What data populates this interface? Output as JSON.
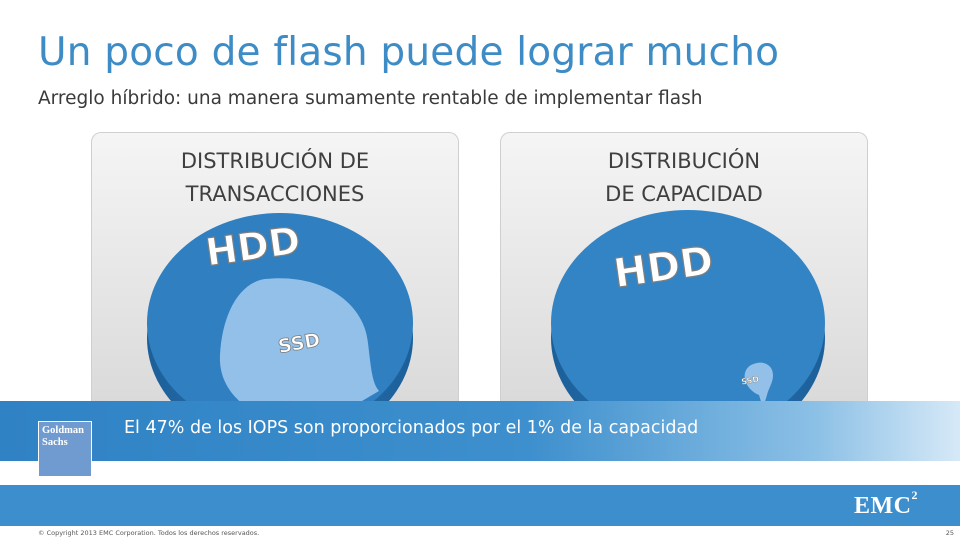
{
  "slide": {
    "title": "Un poco de flash puede lograr mucho",
    "subtitle": "Arreglo híbrido: una manera sumamente rentable de implementar flash"
  },
  "panels": [
    {
      "title": "DISTRIBUCIÓN DE\nTRANSACCIONES",
      "outer_label": "HDD",
      "inner_label": "SSD",
      "ssd_share": 0.47
    },
    {
      "title": "DISTRIBUCIÓN\nDE CAPACIDAD",
      "outer_label": "HDD",
      "inner_label": "SSD",
      "ssd_share": 0.01
    }
  ],
  "callout": {
    "logo_text": "Goldman\nSachs",
    "text": "El 47% de los IOPS son proporcionados por el 1% de la capacidad"
  },
  "footer": {
    "copyright": "© Copyright 2013 EMC Corporation. Todos los derechos reservados.",
    "page_number": "25",
    "logo": "EMC",
    "logo_sup": "2"
  },
  "colors": {
    "title": "#3d8cc6",
    "hdd": "#2f7fc1",
    "ssd": "#8fbde6",
    "band": "#3c8ecc"
  }
}
